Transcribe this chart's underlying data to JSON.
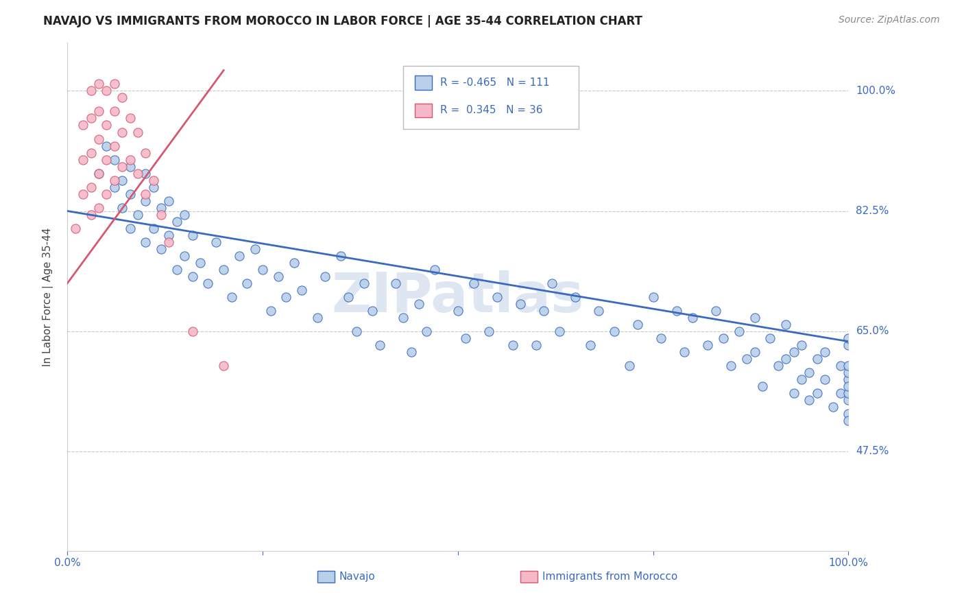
{
  "title": "NAVAJO VS IMMIGRANTS FROM MOROCCO IN LABOR FORCE | AGE 35-44 CORRELATION CHART",
  "source": "Source: ZipAtlas.com",
  "ylabel": "In Labor Force | Age 35-44",
  "xlim": [
    0.0,
    1.0
  ],
  "ylim": [
    0.33,
    1.07
  ],
  "yticks": [
    0.475,
    0.65,
    0.825,
    1.0
  ],
  "ytick_labels": [
    "47.5%",
    "65.0%",
    "82.5%",
    "100.0%"
  ],
  "legend_labels": [
    "Navajo",
    "Immigrants from Morocco"
  ],
  "navajo_R": -0.465,
  "navajo_N": 111,
  "morocco_R": 0.345,
  "morocco_N": 36,
  "navajo_color": "#b8d0e8",
  "morocco_color": "#f4b8c8",
  "navajo_line_color": "#3a6abf",
  "morocco_line_color": "#d45870",
  "background_color": "#ffffff",
  "watermark": "ZIPatlas",
  "navajo_trend_x0": 0.0,
  "navajo_trend_y0": 0.825,
  "navajo_trend_x1": 1.0,
  "navajo_trend_y1": 0.635,
  "morocco_trend_x0": 0.0,
  "morocco_trend_y0": 0.72,
  "morocco_trend_x1": 0.2,
  "morocco_trend_y1": 1.03,
  "navajo_x": [
    0.04,
    0.05,
    0.06,
    0.06,
    0.07,
    0.07,
    0.08,
    0.08,
    0.08,
    0.09,
    0.1,
    0.1,
    0.1,
    0.11,
    0.11,
    0.12,
    0.12,
    0.13,
    0.13,
    0.14,
    0.14,
    0.15,
    0.15,
    0.16,
    0.16,
    0.17,
    0.18,
    0.19,
    0.2,
    0.21,
    0.22,
    0.23,
    0.24,
    0.25,
    0.26,
    0.27,
    0.28,
    0.29,
    0.3,
    0.32,
    0.33,
    0.35,
    0.36,
    0.37,
    0.38,
    0.39,
    0.4,
    0.42,
    0.43,
    0.44,
    0.45,
    0.46,
    0.47,
    0.5,
    0.51,
    0.52,
    0.54,
    0.55,
    0.57,
    0.58,
    0.6,
    0.61,
    0.62,
    0.63,
    0.65,
    0.67,
    0.68,
    0.7,
    0.72,
    0.73,
    0.75,
    0.76,
    0.78,
    0.79,
    0.8,
    0.82,
    0.83,
    0.84,
    0.85,
    0.86,
    0.87,
    0.88,
    0.88,
    0.89,
    0.9,
    0.91,
    0.92,
    0.92,
    0.93,
    0.93,
    0.94,
    0.94,
    0.95,
    0.95,
    0.96,
    0.96,
    0.97,
    0.97,
    0.98,
    0.99,
    0.99,
    1.0,
    1.0,
    1.0,
    1.0,
    1.0,
    1.0,
    1.0,
    1.0,
    1.0,
    1.0
  ],
  "navajo_y": [
    0.88,
    0.92,
    0.86,
    0.9,
    0.83,
    0.87,
    0.8,
    0.85,
    0.89,
    0.82,
    0.78,
    0.84,
    0.88,
    0.8,
    0.86,
    0.77,
    0.83,
    0.79,
    0.84,
    0.74,
    0.81,
    0.76,
    0.82,
    0.73,
    0.79,
    0.75,
    0.72,
    0.78,
    0.74,
    0.7,
    0.76,
    0.72,
    0.77,
    0.74,
    0.68,
    0.73,
    0.7,
    0.75,
    0.71,
    0.67,
    0.73,
    0.76,
    0.7,
    0.65,
    0.72,
    0.68,
    0.63,
    0.72,
    0.67,
    0.62,
    0.69,
    0.65,
    0.74,
    0.68,
    0.64,
    0.72,
    0.65,
    0.7,
    0.63,
    0.69,
    0.63,
    0.68,
    0.72,
    0.65,
    0.7,
    0.63,
    0.68,
    0.65,
    0.6,
    0.66,
    0.7,
    0.64,
    0.68,
    0.62,
    0.67,
    0.63,
    0.68,
    0.64,
    0.6,
    0.65,
    0.61,
    0.67,
    0.62,
    0.57,
    0.64,
    0.6,
    0.66,
    0.61,
    0.56,
    0.62,
    0.58,
    0.63,
    0.59,
    0.55,
    0.61,
    0.56,
    0.62,
    0.58,
    0.54,
    0.6,
    0.56,
    0.63,
    0.58,
    0.53,
    0.59,
    0.64,
    0.55,
    0.6,
    0.56,
    0.52,
    0.57
  ],
  "morocco_x": [
    0.01,
    0.02,
    0.02,
    0.02,
    0.03,
    0.03,
    0.03,
    0.03,
    0.03,
    0.04,
    0.04,
    0.04,
    0.04,
    0.04,
    0.05,
    0.05,
    0.05,
    0.05,
    0.06,
    0.06,
    0.06,
    0.06,
    0.07,
    0.07,
    0.07,
    0.08,
    0.08,
    0.09,
    0.09,
    0.1,
    0.1,
    0.11,
    0.12,
    0.13,
    0.16,
    0.2
  ],
  "morocco_y": [
    0.8,
    0.85,
    0.9,
    0.95,
    0.82,
    0.86,
    0.91,
    0.96,
    1.0,
    0.83,
    0.88,
    0.93,
    0.97,
    1.01,
    0.85,
    0.9,
    0.95,
    1.0,
    0.87,
    0.92,
    0.97,
    1.01,
    0.89,
    0.94,
    0.99,
    0.9,
    0.96,
    0.88,
    0.94,
    0.85,
    0.91,
    0.87,
    0.82,
    0.78,
    0.65,
    0.6
  ]
}
